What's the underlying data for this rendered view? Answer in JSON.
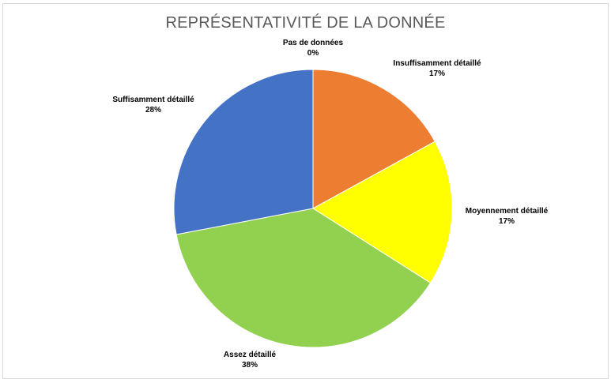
{
  "chart_data": {
    "type": "pie",
    "title": "REPRÉSENTATIVITÉ DE LA DONNÉE",
    "slices": [
      {
        "label": "Pas de données",
        "value": 0,
        "value_label": "0%",
        "color": "#C00000"
      },
      {
        "label": "Insuffisamment détaillé",
        "value": 17,
        "value_label": "17%",
        "color": "#ED7D31"
      },
      {
        "label": "Moyennement détaillé",
        "value": 17,
        "value_label": "17%",
        "color": "#FFFF00"
      },
      {
        "label": "Assez détaillé",
        "value": 38,
        "value_label": "38%",
        "color": "#92D050"
      },
      {
        "label": "Suffisamment détaillé",
        "value": 28,
        "value_label": "28%",
        "color": "#4472C4"
      }
    ]
  }
}
